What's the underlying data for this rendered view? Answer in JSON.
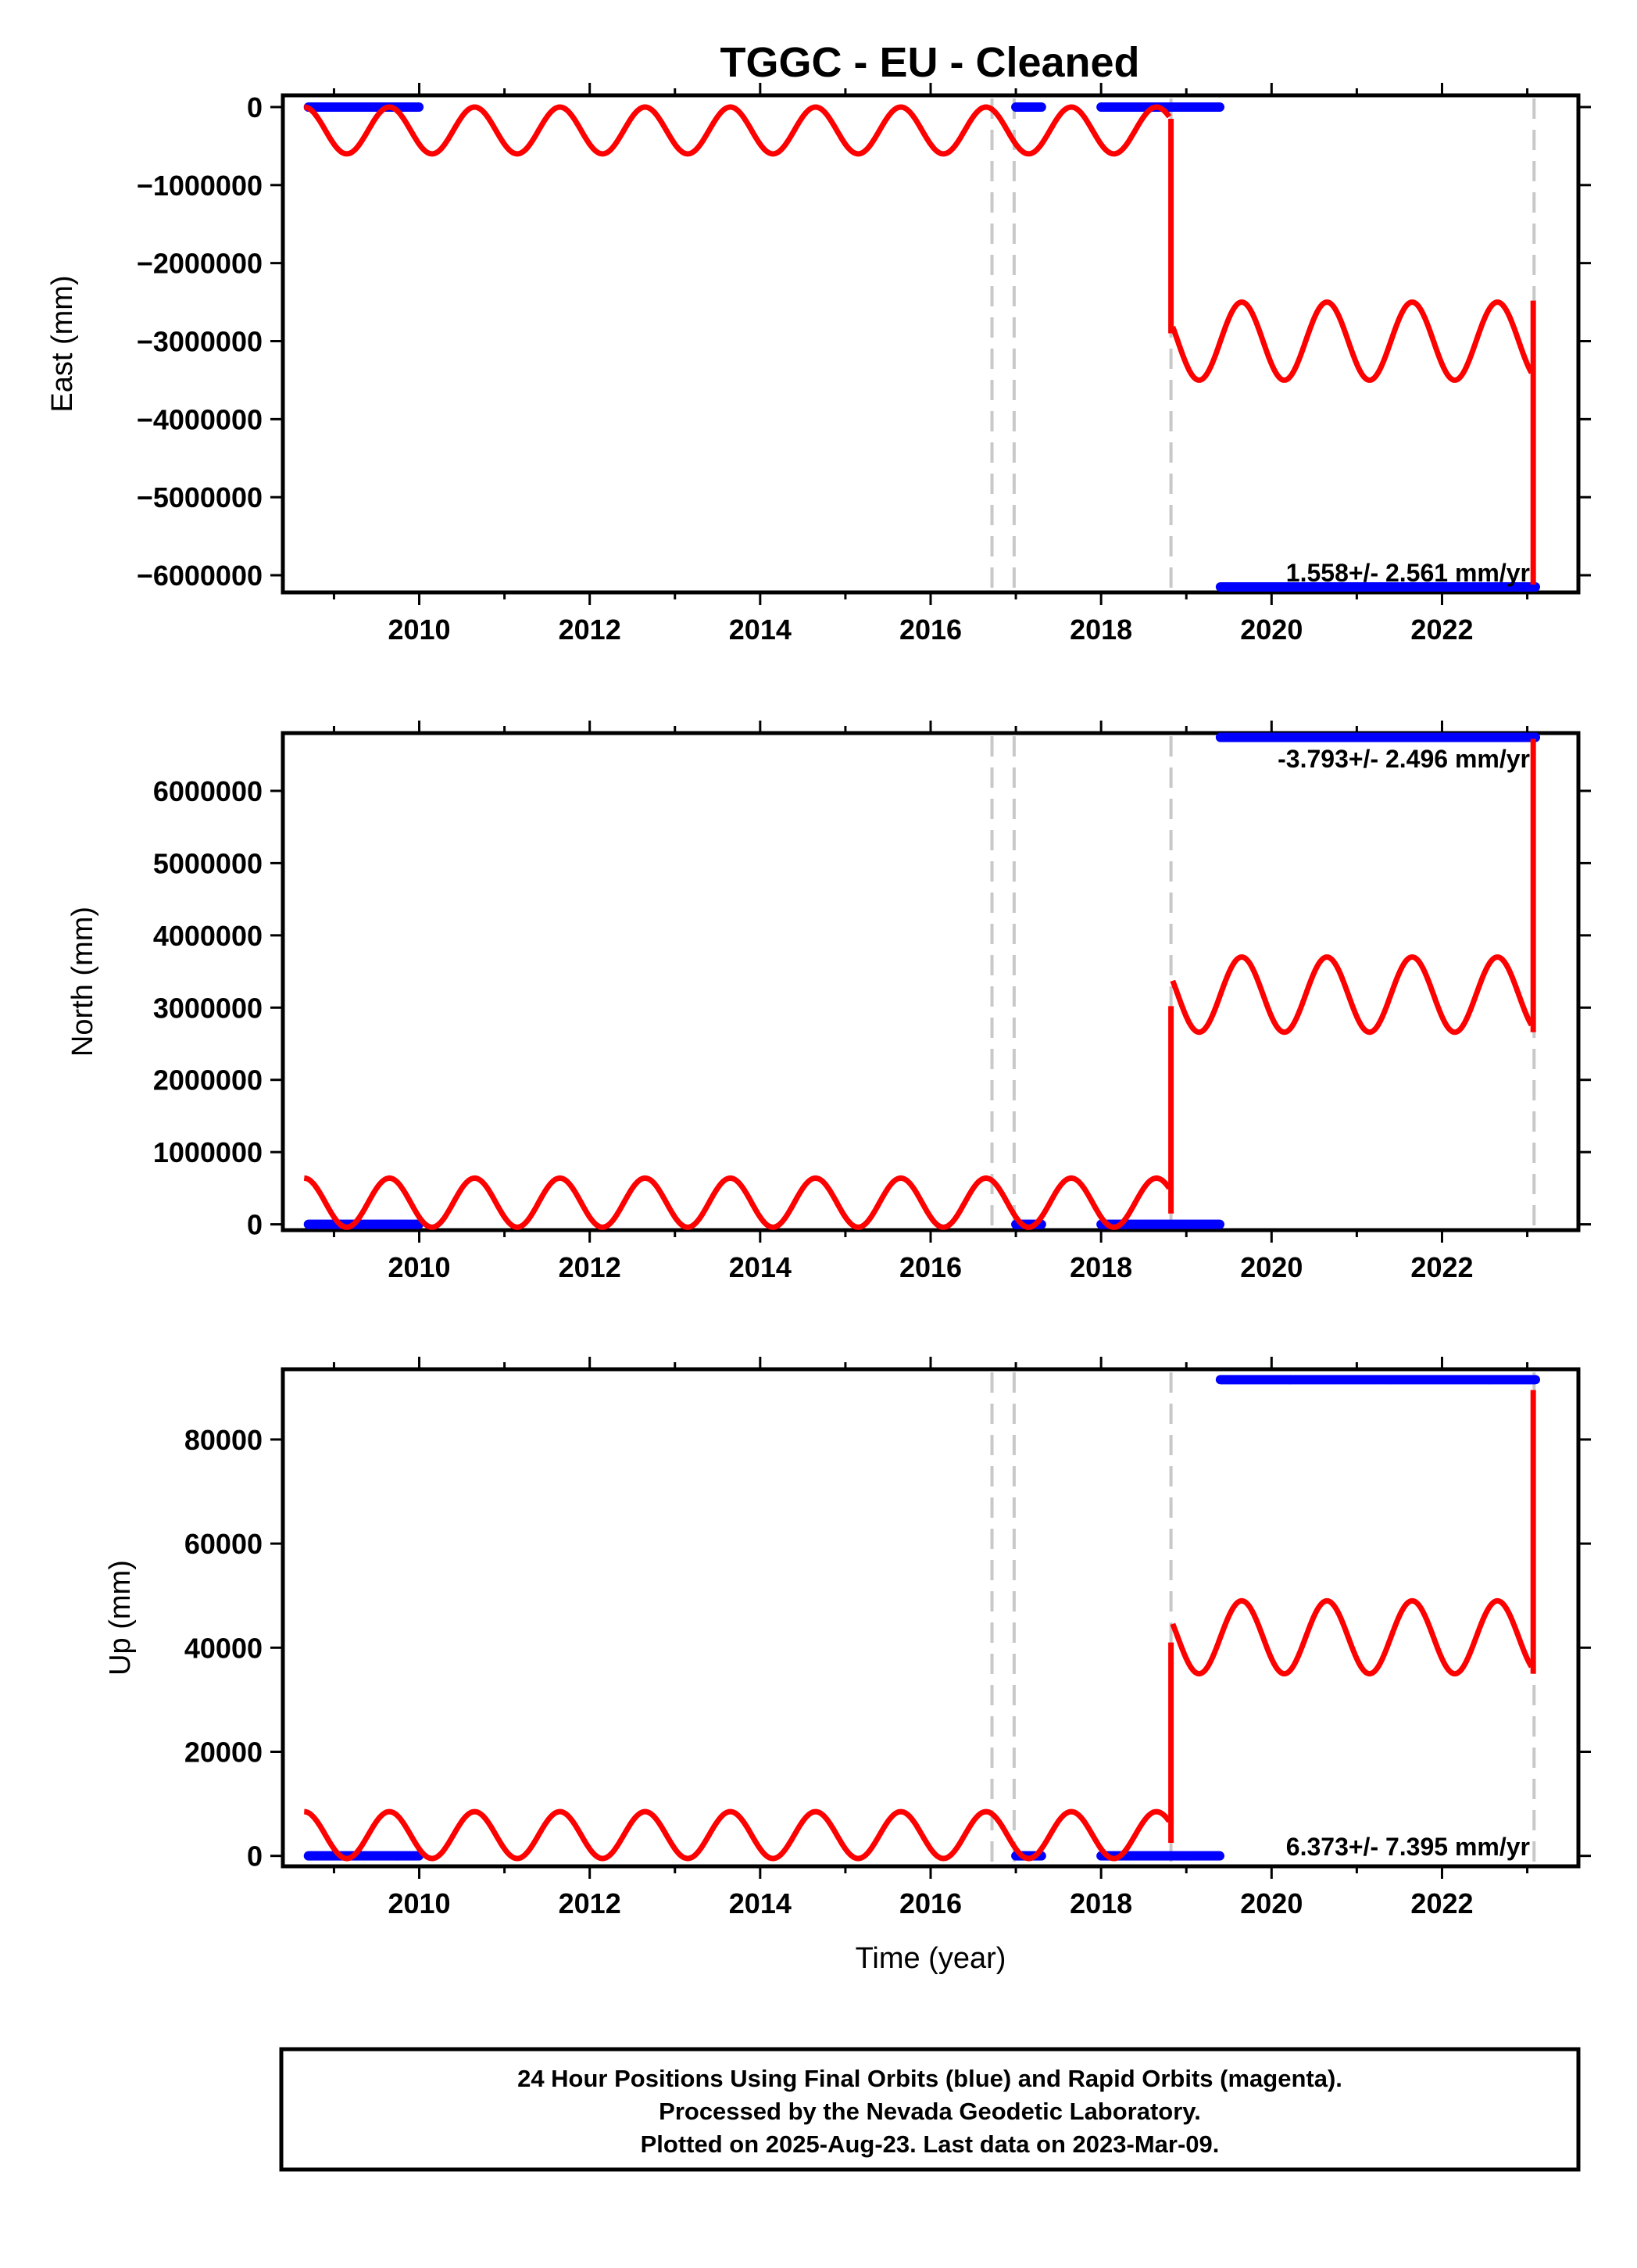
{
  "chart_data": {
    "type": "scatter",
    "title": "TGGC  - EU - Cleaned",
    "xlabel": "Time (year)",
    "xlim": [
      2008.4,
      2023.6
    ],
    "x_ticks": [
      2010,
      2012,
      2014,
      2016,
      2018,
      2020,
      2022
    ],
    "event_lines": [
      2016.72,
      2016.98,
      2018.82,
      2023.08
    ],
    "colors": {
      "final_orbits": "#0000ff",
      "model": "#ff0000",
      "event_line": "#c8c8c8"
    },
    "panels": [
      {
        "id": "east",
        "ylabel": "East (mm)",
        "ylim": [
          -6220000,
          150000
        ],
        "y_ticks": [
          0,
          -1000000,
          -2000000,
          -3000000,
          -4000000,
          -5000000,
          -6000000
        ],
        "y_tick_labels": [
          "0",
          "−1000000",
          "−2000000",
          "−3000000",
          "−4000000",
          "−5000000",
          "−6000000"
        ],
        "rate_label": "1.558+/- 2.561 mm/yr",
        "rate_position": "bottom-right",
        "observations": [
          {
            "x_start": 2008.7,
            "x_end": 2010.0,
            "y": 0
          },
          {
            "x_start": 2017.0,
            "x_end": 2017.3,
            "y": 0
          },
          {
            "x_start": 2018.0,
            "x_end": 2019.4,
            "y": 0
          },
          {
            "x_start": 2019.4,
            "x_end": 2023.1,
            "y": -6150000
          }
        ],
        "model_segments": [
          {
            "x_start": 2008.65,
            "x_end": 2018.8,
            "offset": -300000,
            "amplitude": 300000,
            "trend": 0
          },
          {
            "x_start": 2018.84,
            "x_end": 2023.05,
            "offset": -3000000,
            "amplitude": 500000,
            "trend": 0
          }
        ],
        "model_steps": [
          {
            "x": 2018.82,
            "y_from": -150000,
            "y_to": -2900000
          },
          {
            "x": 2023.07,
            "y_from": -2480000,
            "y_to": -6120000
          }
        ]
      },
      {
        "id": "north",
        "ylabel": "North (mm)",
        "ylim": [
          -80000,
          6800000
        ],
        "y_ticks": [
          0,
          1000000,
          2000000,
          3000000,
          4000000,
          5000000,
          6000000
        ],
        "y_tick_labels": [
          "0",
          "1000000",
          "2000000",
          "3000000",
          "4000000",
          "5000000",
          "6000000"
        ],
        "rate_label": "-3.793+/- 2.496 mm/yr",
        "rate_position": "top-right",
        "observations": [
          {
            "x_start": 2008.7,
            "x_end": 2010.0,
            "y": 0
          },
          {
            "x_start": 2017.0,
            "x_end": 2017.3,
            "y": 0
          },
          {
            "x_start": 2018.0,
            "x_end": 2019.4,
            "y": 0
          },
          {
            "x_start": 2019.4,
            "x_end": 2023.1,
            "y": 6740000
          }
        ],
        "model_segments": [
          {
            "x_start": 2008.65,
            "x_end": 2018.8,
            "offset": 300000,
            "amplitude": 340000,
            "trend": 0
          },
          {
            "x_start": 2018.84,
            "x_end": 2023.05,
            "offset": 3180000,
            "amplitude": 520000,
            "trend": 0
          }
        ],
        "model_steps": [
          {
            "x": 2018.82,
            "y_from": 150000,
            "y_to": 3020000
          },
          {
            "x": 2023.07,
            "y_from": 2660000,
            "y_to": 6720000
          }
        ]
      },
      {
        "id": "up",
        "ylabel": "Up (mm)",
        "ylim": [
          -2000,
          93500
        ],
        "y_ticks": [
          0,
          20000,
          40000,
          60000,
          80000
        ],
        "y_tick_labels": [
          "0",
          "20000",
          "40000",
          "60000",
          "80000"
        ],
        "rate_label": "6.373+/- 7.395 mm/yr",
        "rate_position": "bottom-right",
        "observations": [
          {
            "x_start": 2008.7,
            "x_end": 2010.0,
            "y": 0
          },
          {
            "x_start": 2017.0,
            "x_end": 2017.3,
            "y": 0
          },
          {
            "x_start": 2018.0,
            "x_end": 2019.4,
            "y": 0
          },
          {
            "x_start": 2019.4,
            "x_end": 2023.1,
            "y": 91500
          }
        ],
        "model_segments": [
          {
            "x_start": 2008.65,
            "x_end": 2018.8,
            "offset": 4000,
            "amplitude": 4500,
            "trend": 0
          },
          {
            "x_start": 2018.84,
            "x_end": 2023.05,
            "offset": 42000,
            "amplitude": 7000,
            "trend": 0
          }
        ],
        "model_steps": [
          {
            "x": 2018.82,
            "y_from": 2500,
            "y_to": 41000
          },
          {
            "x": 2023.07,
            "y_from": 35000,
            "y_to": 89500
          }
        ]
      }
    ]
  },
  "footer": {
    "line1": "24 Hour Positions Using Final Orbits (blue) and Rapid Orbits (magenta).",
    "line2": "Processed by the Nevada Geodetic Laboratory.",
    "line3": "Plotted on 2025-Aug-23. Last data on 2023-Mar-09."
  }
}
